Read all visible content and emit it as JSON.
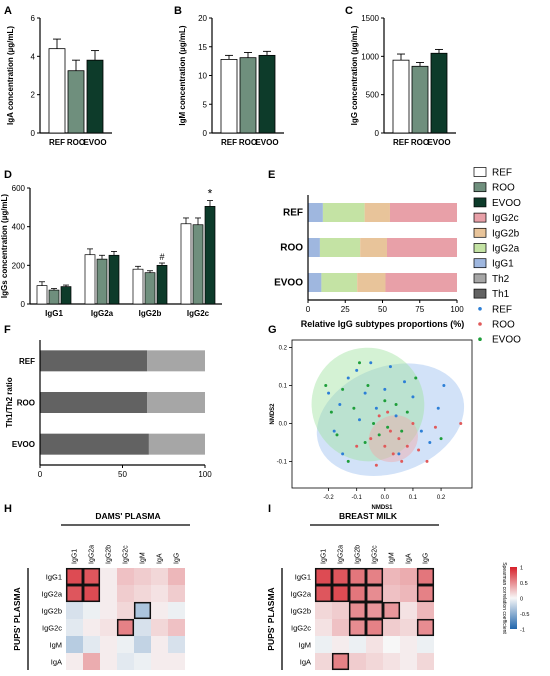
{
  "panels": {
    "A": "A",
    "B": "B",
    "C": "C",
    "D": "D",
    "E": "E",
    "F": "F",
    "G": "G",
    "H": "H",
    "I": "I"
  },
  "colors": {
    "REF": "#ffffff",
    "ROO": "#6f8f7d",
    "EVOO": "#0d3b2a",
    "IgG2c": "#e8a0a8",
    "IgG2b": "#e8c49a",
    "IgG2a": "#c4e3a4",
    "IgG1": "#9fb7df",
    "Th2": "#a6a6a6",
    "Th1": "#626262",
    "ellipse_REF": "#9cbff0",
    "ellipse_ROO": "#f2a9a9",
    "ellipse_EVOO": "#9fe29f",
    "point_REF": "#2d7fd6",
    "point_ROO": "#e05a5a",
    "point_EVOO": "#1e9e3a"
  },
  "legend": {
    "groups": [
      {
        "label": "REF",
        "swatch": "REF",
        "kind": "box"
      },
      {
        "label": "ROO",
        "swatch": "ROO",
        "kind": "box"
      },
      {
        "label": "EVOO",
        "swatch": "EVOO",
        "kind": "box"
      },
      {
        "label": "IgG2c",
        "swatch": "IgG2c",
        "kind": "box"
      },
      {
        "label": "IgG2b",
        "swatch": "IgG2b",
        "kind": "box"
      },
      {
        "label": "IgG2a",
        "swatch": "IgG2a",
        "kind": "box"
      },
      {
        "label": "IgG1",
        "swatch": "IgG1",
        "kind": "box"
      },
      {
        "label": "Th2",
        "swatch": "Th2",
        "kind": "box"
      },
      {
        "label": "Th1",
        "swatch": "Th1",
        "kind": "box"
      },
      {
        "label": "REF",
        "swatch": "point_REF",
        "kind": "dot"
      },
      {
        "label": "ROO",
        "swatch": "point_ROO",
        "kind": "dot"
      },
      {
        "label": "EVOO",
        "swatch": "point_EVOO",
        "kind": "dot"
      }
    ]
  },
  "chart_data": [
    {
      "id": "A",
      "type": "bar",
      "ylabel": "IgA concentration (µg/mL)",
      "categories": [
        "REF",
        "ROO",
        "EVOO"
      ],
      "values": [
        4.4,
        3.25,
        3.8
      ],
      "errors": [
        0.5,
        0.55,
        0.5
      ],
      "ylim": [
        0,
        6
      ],
      "yticks": [
        0,
        2,
        4,
        6
      ]
    },
    {
      "id": "B",
      "type": "bar",
      "ylabel": "IgM concentration (µg/mL)",
      "categories": [
        "REF",
        "ROO",
        "EVOO"
      ],
      "values": [
        12.8,
        13.1,
        13.5
      ],
      "errors": [
        0.7,
        0.9,
        0.7
      ],
      "ylim": [
        0,
        20
      ],
      "yticks": [
        0,
        5,
        10,
        15,
        20
      ]
    },
    {
      "id": "C",
      "type": "bar",
      "ylabel": "IgG concentration (µg/mL)",
      "categories": [
        "REF",
        "ROO",
        "EVOO"
      ],
      "values": [
        950,
        870,
        1040
      ],
      "errors": [
        80,
        50,
        50
      ],
      "ylim": [
        0,
        1500
      ],
      "yticks": [
        0,
        500,
        1000,
        1500
      ]
    },
    {
      "id": "D",
      "type": "bar",
      "ylabel": "IgGs concentration (µg/mL)",
      "categories": [
        "IgG1",
        "IgG2a",
        "IgG2b",
        "IgG2c"
      ],
      "series": [
        {
          "name": "REF",
          "values": [
            95,
            255,
            180,
            415
          ],
          "errors": [
            20,
            30,
            15,
            30
          ]
        },
        {
          "name": "ROO",
          "values": [
            72,
            232,
            162,
            410
          ],
          "errors": [
            8,
            20,
            10,
            35
          ]
        },
        {
          "name": "EVOO",
          "values": [
            90,
            252,
            200,
            505
          ],
          "errors": [
            8,
            20,
            12,
            30
          ]
        }
      ],
      "annotations": [
        {
          "category": "IgG2b",
          "series": "EVOO",
          "text": "#"
        },
        {
          "category": "IgG2c",
          "series": "EVOO",
          "text": "*"
        }
      ],
      "ylim": [
        0,
        600
      ],
      "yticks": [
        0,
        200,
        400,
        600
      ]
    },
    {
      "id": "E",
      "type": "bar",
      "orientation": "horizontal",
      "stacked": true,
      "xlabel": "Relative IgG subtypes proportions (%)",
      "categories": [
        "REF",
        "ROO",
        "EVOO"
      ],
      "series": [
        {
          "name": "IgG1",
          "values": [
            10,
            8,
            9
          ]
        },
        {
          "name": "IgG2a",
          "values": [
            28,
            27,
            24
          ]
        },
        {
          "name": "IgG2b",
          "values": [
            17,
            18,
            19
          ]
        },
        {
          "name": "IgG2c",
          "values": [
            45,
            47,
            48
          ]
        }
      ],
      "xlim": [
        0,
        100
      ],
      "xticks": [
        0,
        25,
        50,
        75,
        100
      ]
    },
    {
      "id": "F",
      "type": "bar",
      "orientation": "horizontal",
      "stacked": true,
      "ylabel": "Th1/Th2 ratio",
      "categories": [
        "REF",
        "ROO",
        "EVOO"
      ],
      "series": [
        {
          "name": "Th1",
          "values": [
            65,
            65,
            66
          ]
        },
        {
          "name": "Th2",
          "values": [
            35,
            35,
            34
          ]
        }
      ],
      "xlim": [
        0,
        100
      ],
      "xticks": [
        0,
        50,
        100
      ]
    },
    {
      "id": "G",
      "type": "scatter",
      "xlabel": "NMDS1",
      "ylabel": "NMDS2",
      "xlim": [
        -0.33,
        0.31
      ],
      "ylim": [
        -0.17,
        0.22
      ],
      "xticks": [
        -0.2,
        -0.1,
        0.0,
        0.1,
        0.2
      ],
      "xtick_labels": [
        "-0.2",
        "-0.1",
        "0.0",
        "0.1",
        "0.2"
      ],
      "yticks": [
        -0.1,
        0.0,
        0.1,
        0.2
      ],
      "ytick_labels": [
        "-0.1",
        "0.0",
        "0.1",
        "0.2"
      ],
      "ellipses": [
        {
          "group": "REF",
          "cx": 0.02,
          "cy": 0.01,
          "rx": 0.27,
          "ry": 0.14,
          "angle": -20
        },
        {
          "group": "EVOO",
          "cx": -0.06,
          "cy": 0.05,
          "rx": 0.2,
          "ry": 0.15,
          "angle": -25
        },
        {
          "group": "ROO",
          "cx": 0.03,
          "cy": -0.04,
          "rx": 0.09,
          "ry": 0.06,
          "angle": -30
        }
      ],
      "series": [
        {
          "name": "REF",
          "points": [
            [
              -0.2,
              0.08
            ],
            [
              -0.18,
              -0.02
            ],
            [
              -0.16,
              0.05
            ],
            [
              -0.15,
              -0.08
            ],
            [
              -0.13,
              0.12
            ],
            [
              -0.1,
              0.14
            ],
            [
              -0.09,
              0.01
            ],
            [
              -0.07,
              0.08
            ],
            [
              -0.05,
              0.16
            ],
            [
              -0.03,
              0.04
            ],
            [
              0.0,
              0.09
            ],
            [
              0.02,
              0.15
            ],
            [
              0.04,
              0.02
            ],
            [
              0.07,
              0.11
            ],
            [
              0.1,
              0.07
            ],
            [
              0.13,
              -0.02
            ],
            [
              0.16,
              -0.05
            ],
            [
              0.19,
              0.04
            ],
            [
              0.21,
              0.1
            ],
            [
              0.05,
              -0.08
            ]
          ]
        },
        {
          "name": "ROO",
          "points": [
            [
              -0.05,
              -0.04
            ],
            [
              -0.02,
              0.02
            ],
            [
              0.0,
              -0.06
            ],
            [
              0.02,
              -0.02
            ],
            [
              0.03,
              -0.08
            ],
            [
              0.05,
              -0.04
            ],
            [
              0.06,
              -0.1
            ],
            [
              0.08,
              -0.06
            ],
            [
              0.1,
              0.0
            ],
            [
              0.12,
              -0.07
            ],
            [
              0.15,
              -0.1
            ],
            [
              0.18,
              -0.01
            ],
            [
              -0.1,
              -0.06
            ],
            [
              -0.03,
              -0.11
            ],
            [
              0.01,
              0.03
            ],
            [
              0.27,
              0.0
            ]
          ]
        },
        {
          "name": "EVOO",
          "points": [
            [
              -0.21,
              0.1
            ],
            [
              -0.19,
              0.03
            ],
            [
              -0.17,
              -0.03
            ],
            [
              -0.15,
              0.09
            ],
            [
              -0.13,
              -0.1
            ],
            [
              -0.11,
              0.04
            ],
            [
              -0.09,
              0.16
            ],
            [
              -0.07,
              -0.05
            ],
            [
              -0.06,
              0.1
            ],
            [
              -0.04,
              0.0
            ],
            [
              -0.02,
              -0.03
            ],
            [
              0.0,
              0.06
            ],
            [
              0.01,
              -0.01
            ],
            [
              0.04,
              0.05
            ],
            [
              0.06,
              -0.02
            ],
            [
              0.08,
              0.03
            ],
            [
              0.11,
              0.12
            ],
            [
              0.2,
              -0.04
            ]
          ]
        }
      ]
    },
    {
      "id": "H",
      "type": "heatmap",
      "title": "DAMS' PLASMA",
      "ylabel": "PUPS' PLASMA",
      "x": [
        "IgG1",
        "IgG2a",
        "IgG2b",
        "IgG2c",
        "IgM",
        "IgA",
        "IgG"
      ],
      "y": [
        "IgG1",
        "IgG2a",
        "IgG2b",
        "IgG2c",
        "IgM",
        "IgA"
      ],
      "values": [
        [
          0.8,
          0.75,
          0.05,
          0.25,
          0.2,
          0.15,
          0.3
        ],
        [
          0.75,
          0.8,
          0.05,
          0.2,
          0.15,
          0.1,
          0.2
        ],
        [
          -0.15,
          -0.05,
          0.05,
          0.15,
          -0.35,
          0.05,
          -0.05
        ],
        [
          -0.1,
          0.05,
          0.1,
          0.55,
          -0.15,
          0.15,
          0.25
        ],
        [
          -0.3,
          -0.1,
          0.05,
          -0.05,
          -0.25,
          0.05,
          -0.15
        ],
        [
          0.05,
          0.35,
          0.05,
          -0.1,
          -0.05,
          0.05,
          0.05
        ]
      ],
      "significant": [
        [
          0,
          0
        ],
        [
          0,
          1
        ],
        [
          1,
          0
        ],
        [
          1,
          1
        ],
        [
          2,
          4
        ],
        [
          3,
          3
        ]
      ]
    },
    {
      "id": "I",
      "type": "heatmap",
      "title": "BREAST MILK",
      "ylabel": "PUPS' PLASMA",
      "x": [
        "IgG1",
        "IgG2a",
        "IgG2b",
        "IgG2c",
        "IgM",
        "IgA",
        "IgG"
      ],
      "y": [
        "IgG1",
        "IgG2a",
        "IgG2b",
        "IgG2c",
        "IgM",
        "IgA"
      ],
      "values": [
        [
          0.8,
          0.75,
          0.6,
          0.55,
          0.3,
          0.35,
          0.6
        ],
        [
          0.75,
          0.8,
          0.6,
          0.5,
          0.25,
          0.3,
          0.55
        ],
        [
          0.15,
          0.2,
          0.5,
          0.45,
          0.45,
          0.1,
          0.3
        ],
        [
          0.1,
          0.25,
          0.5,
          0.55,
          0.2,
          0.15,
          0.5
        ],
        [
          -0.05,
          0.05,
          -0.05,
          0.1,
          0.0,
          0.05,
          -0.05
        ],
        [
          0.15,
          0.55,
          0.2,
          0.15,
          0.1,
          0.05,
          0.15
        ]
      ],
      "significant": [
        [
          0,
          0
        ],
        [
          0,
          1
        ],
        [
          0,
          2
        ],
        [
          0,
          3
        ],
        [
          0,
          6
        ],
        [
          1,
          0
        ],
        [
          1,
          1
        ],
        [
          1,
          2
        ],
        [
          1,
          3
        ],
        [
          1,
          6
        ],
        [
          2,
          2
        ],
        [
          2,
          3
        ],
        [
          2,
          4
        ],
        [
          3,
          2
        ],
        [
          3,
          3
        ],
        [
          3,
          6
        ],
        [
          5,
          1
        ]
      ]
    }
  ],
  "colorbar": {
    "label": "Spearman correlation coefficient",
    "ticks": [
      1,
      0.5,
      0,
      -0.5,
      -1
    ],
    "tick_labels": [
      "1",
      "0.5",
      "0",
      "-0.5",
      "-1"
    ],
    "low_color": "#2166ac",
    "mid_color": "#f7f7f7",
    "high_color": "#d6202a"
  }
}
